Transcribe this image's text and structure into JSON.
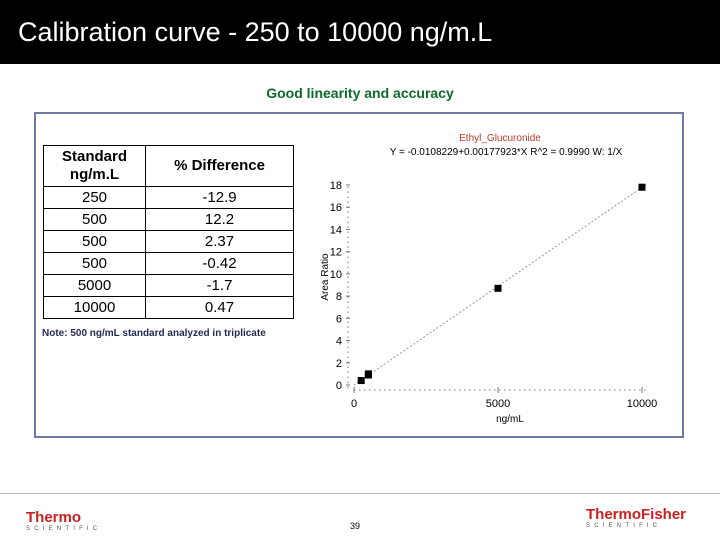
{
  "slide": {
    "title": "Calibration curve - 250 to 10000 ng/m.L",
    "subtitle": "Good linearity and accuracy",
    "note": "Note: 500 ng/mL standard analyzed in triplicate",
    "page_number": "39"
  },
  "table": {
    "headers": [
      "Standard ng/m.L",
      "% Difference"
    ],
    "rows": [
      [
        "250",
        "-12.9"
      ],
      [
        "500",
        "12.2"
      ],
      [
        "500",
        "2.37"
      ],
      [
        "500",
        "-0.42"
      ],
      [
        "5000",
        "-1.7"
      ],
      [
        "10000",
        "0.47"
      ]
    ]
  },
  "plot": {
    "compound": "Ethyl_Glucuronide",
    "equation": "Y = -0.0108229+0.00177923*X   R^2 = 0.9990   W: 1/X",
    "ylabel": "Area Ratio",
    "xlabel": "ng/mL",
    "color_compound": "#c0392b"
  },
  "chart_data": {
    "type": "scatter",
    "title": "Ethyl_Glucuronide",
    "xlabel": "ng/mL",
    "ylabel": "Area Ratio",
    "xlim": [
      0,
      10000
    ],
    "ylim": [
      0,
      18
    ],
    "x_ticks": [
      "0",
      "5000",
      "10000"
    ],
    "y_ticks": [
      "0",
      "2",
      "4",
      "6",
      "8",
      "10",
      "12",
      "14",
      "16",
      "18"
    ],
    "points": [
      {
        "x": 250,
        "y": 0.4
      },
      {
        "x": 500,
        "y": 1.0
      },
      {
        "x": 500,
        "y": 0.9
      },
      {
        "x": 500,
        "y": 0.9
      },
      {
        "x": 5000,
        "y": 8.7
      },
      {
        "x": 10000,
        "y": 17.8
      }
    ],
    "fit": {
      "intercept": -0.0108229,
      "slope": 0.00177923
    }
  },
  "footer": {
    "left_logo": "Thermo",
    "left_logo_sub": "SCIENTIFIC",
    "right_logo": "ThermoFisher",
    "right_logo_sub": "SCIENTIFIC",
    "brand_color": "#cc1f1f"
  }
}
